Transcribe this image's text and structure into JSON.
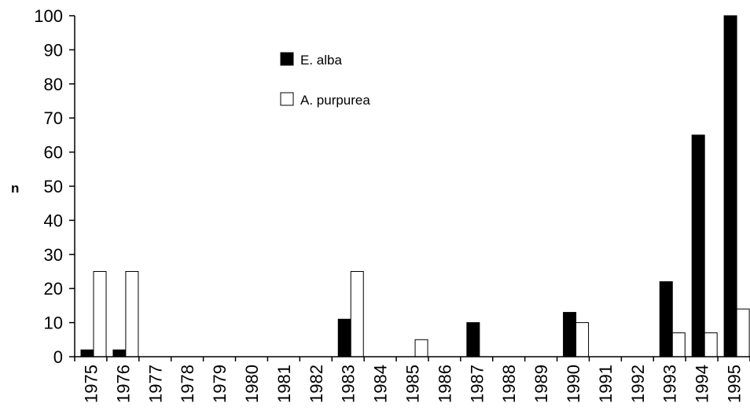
{
  "chart_data": {
    "type": "bar",
    "categories": [
      "1975",
      "1976",
      "1977",
      "1978",
      "1979",
      "1980",
      "1981",
      "1982",
      "1983",
      "1984",
      "1985",
      "1986",
      "1987",
      "1988",
      "1989",
      "1990",
      "1991",
      "1992",
      "1993",
      "1994",
      "1995"
    ],
    "series": [
      {
        "name": "E. alba",
        "values": [
          2,
          2,
          0,
          0,
          0,
          0,
          0,
          0,
          11,
          0,
          0,
          0,
          10,
          0,
          0,
          13,
          0,
          0,
          22,
          65,
          100
        ],
        "color": "#000000"
      },
      {
        "name": "A. purpurea",
        "values": [
          25,
          25,
          0,
          0,
          0,
          0,
          0,
          0,
          25,
          0,
          5,
          0,
          0,
          0,
          0,
          10,
          0,
          0,
          7,
          7,
          14
        ],
        "color": "#ffffff"
      }
    ],
    "title": "",
    "xlabel": "",
    "ylabel": "n",
    "ylim": [
      0,
      100
    ],
    "yticks": [
      0,
      10,
      20,
      30,
      40,
      50,
      60,
      70,
      80,
      90,
      100
    ],
    "grid": false,
    "legend": "top-center"
  }
}
